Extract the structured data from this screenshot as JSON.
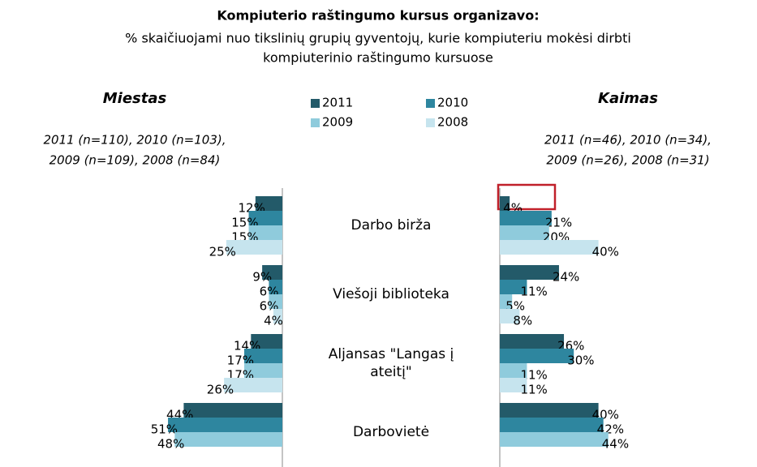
{
  "chart_data": {
    "type": "bar",
    "orientation": "horizontal",
    "title": "Kompiuterio raštingumo kursus organizavo:",
    "subtitle": [
      "% skaičiuojami nuo tikslinių grupių gyventojų, kurie kompiuteriu mokėsi dirbti",
      "kompiuterinio raštingumo kursuose"
    ],
    "categories": [
      "Darbo birža",
      "Viešoji biblioteka",
      "Aljansas \"Langas į ateitį\"",
      "Darbovietė"
    ],
    "panels": [
      {
        "title": "Miestas",
        "note": [
          "2011 (n=110), 2010 (n=103),",
          "2009 (n=109),  2008 (n=84)"
        ],
        "direction": "left",
        "xlim": [
          0,
          55
        ],
        "series": [
          {
            "name": "2011",
            "color": "#235a69",
            "values": [
              12,
              9,
              14,
              44
            ],
            "value_labels": [
              "12%",
              "9%",
              "14%",
              "44%"
            ]
          },
          {
            "name": "2010",
            "color": "#2e869f",
            "values": [
              15,
              6,
              17,
              51
            ],
            "value_labels": [
              "15%",
              "6%",
              "17%",
              "51%"
            ]
          },
          {
            "name": "2009",
            "color": "#8fcbdc",
            "values": [
              15,
              6,
              17,
              48
            ],
            "value_labels": [
              "15%",
              "6%",
              "17%",
              "48%"
            ]
          },
          {
            "name": "2008",
            "color": "#c6e4ee",
            "values": [
              25,
              4,
              26,
              null
            ],
            "value_labels": [
              "25%",
              "4%",
              "26%",
              null
            ]
          }
        ]
      },
      {
        "title": "Kaimas",
        "note": [
          "2011 (n=46), 2010 (n=34),",
          "2009 (n=26), 2008 (n=31)"
        ],
        "direction": "right",
        "xlim": [
          0,
          50
        ],
        "series": [
          {
            "name": "2011",
            "color": "#235a69",
            "values": [
              4,
              24,
              26,
              40
            ],
            "value_labels": [
              "4%",
              "24%",
              "26%",
              "40%"
            ]
          },
          {
            "name": "2010",
            "color": "#2e869f",
            "values": [
              21,
              11,
              30,
              42
            ],
            "value_labels": [
              "21%",
              "11%",
              "30%",
              "42%"
            ]
          },
          {
            "name": "2009",
            "color": "#8fcbdc",
            "values": [
              20,
              5,
              11,
              44
            ],
            "value_labels": [
              "20%",
              "5%",
              "11%",
              "44%"
            ]
          },
          {
            "name": "2008",
            "color": "#c6e4ee",
            "values": [
              40,
              8,
              11,
              null
            ],
            "value_labels": [
              "40%",
              "8%",
              "11%",
              null
            ]
          }
        ]
      }
    ]
  }
}
